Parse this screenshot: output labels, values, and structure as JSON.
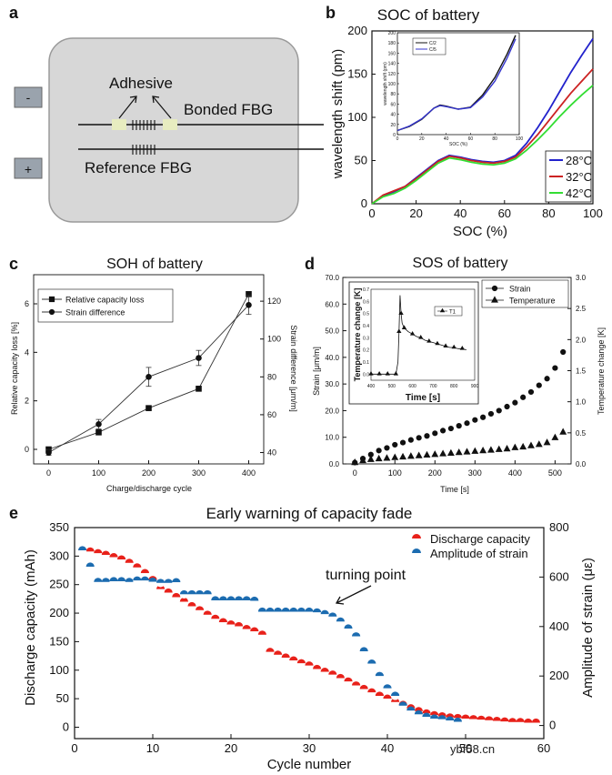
{
  "watermark": "ybf58.cn",
  "panel_a": {
    "letter": "a",
    "minus": "-",
    "plus": "+",
    "adhesive": "Adhesive",
    "bonded": "Bonded FBG",
    "reference": "Reference FBG"
  },
  "chart_data": [
    {
      "panel": "b",
      "type": "line",
      "title": "SOC of battery",
      "xlabel": "SOC (%)",
      "ylabel": "wavelength shift (pm)",
      "xlim": [
        0,
        100
      ],
      "ylim": [
        0,
        200
      ],
      "xticks": [
        "0",
        "20",
        "40",
        "60",
        "80",
        "100"
      ],
      "yticks": [
        "0",
        "50",
        "100",
        "150",
        "200"
      ],
      "legend_position": "bottom-right",
      "series": [
        {
          "name": "28°C",
          "color": "#2222cc",
          "x": [
            0,
            5,
            10,
            15,
            20,
            25,
            30,
            35,
            40,
            45,
            50,
            55,
            60,
            65,
            70,
            75,
            80,
            85,
            90,
            95,
            100
          ],
          "y": [
            0,
            9,
            14,
            20,
            30,
            40,
            50,
            56,
            54,
            51,
            49,
            48,
            50,
            56,
            70,
            88,
            108,
            130,
            152,
            172,
            191
          ]
        },
        {
          "name": "32°C",
          "color": "#cc2222",
          "x": [
            0,
            5,
            10,
            15,
            20,
            25,
            30,
            35,
            40,
            45,
            50,
            55,
            60,
            65,
            70,
            75,
            80,
            85,
            90,
            95,
            100
          ],
          "y": [
            0,
            10,
            15,
            20,
            29,
            39,
            49,
            55,
            53,
            50,
            48,
            47,
            49,
            54,
            66,
            80,
            96,
            112,
            128,
            142,
            156
          ]
        },
        {
          "name": "42°C",
          "color": "#33dd33",
          "x": [
            0,
            5,
            10,
            15,
            20,
            25,
            30,
            35,
            40,
            45,
            50,
            55,
            60,
            65,
            70,
            75,
            80,
            85,
            90,
            95,
            100
          ],
          "y": [
            0,
            8,
            12,
            18,
            27,
            37,
            47,
            53,
            51,
            48,
            46,
            45,
            47,
            52,
            62,
            74,
            87,
            101,
            114,
            126,
            137
          ]
        }
      ],
      "inset": {
        "xlabel": "SOC (%)",
        "ylabel": "wavelength shift (pm)",
        "xlim": [
          0,
          100
        ],
        "ylim": [
          0,
          200
        ],
        "xticks": [
          "0",
          "20",
          "40",
          "60",
          "80",
          "100"
        ],
        "yticks": [
          "0",
          "20",
          "40",
          "60",
          "80",
          "100",
          "120",
          "140",
          "160",
          "180",
          "200"
        ],
        "series": [
          {
            "name": "C/2",
            "color": "#111111",
            "x": [
              0,
              10,
              20,
              30,
              35,
              40,
              50,
              60,
              70,
              80,
              90,
              97
            ],
            "y": [
              8,
              16,
              30,
              52,
              58,
              56,
              50,
              54,
              78,
              112,
              158,
              195
            ]
          },
          {
            "name": "C/5",
            "color": "#3333cc",
            "x": [
              0,
              10,
              20,
              30,
              35,
              40,
              50,
              60,
              70,
              80,
              90,
              97
            ],
            "y": [
              8,
              17,
              31,
              52,
              57,
              55,
              50,
              53,
              74,
              105,
              150,
              188
            ]
          }
        ]
      }
    },
    {
      "panel": "c",
      "type": "line",
      "title": "SOH of battery",
      "xlabel": "Charge/discharge cycle",
      "ylabel": "Relative capacity loss [%]",
      "ylabel_right": "Strain difference [μm/m]",
      "xlim": [
        -30,
        430
      ],
      "ylim": [
        -0.6,
        7.2
      ],
      "ylim_right": [
        34,
        134
      ],
      "xticks": [
        "0",
        "100",
        "200",
        "300",
        "400"
      ],
      "yticks": [
        "0",
        "2",
        "4",
        "6"
      ],
      "yticks_right": [
        "40",
        "60",
        "80",
        "100",
        "120"
      ],
      "legend_position": "top-left",
      "series": [
        {
          "name": "Relative capacity loss",
          "marker": "square",
          "axis": "left",
          "x": [
            0,
            100,
            200,
            300,
            400
          ],
          "y": [
            0,
            0.7,
            1.7,
            2.5,
            6.4
          ]
        },
        {
          "name": "Strain difference",
          "marker": "circle",
          "axis": "right",
          "x": [
            0,
            100,
            200,
            300,
            400
          ],
          "y": [
            40,
            55,
            80,
            90,
            118
          ],
          "err": [
            1.5,
            2.5,
            5,
            4,
            5
          ]
        }
      ]
    },
    {
      "panel": "d",
      "type": "scatter",
      "title": "SOS of battery",
      "xlabel": "Time [s]",
      "ylabel": "Strain [μm/m]",
      "ylabel_right": "Temperature change [K]",
      "xlim": [
        -30,
        540
      ],
      "ylim": [
        0,
        70
      ],
      "ylim_right": [
        0,
        3
      ],
      "xticks": [
        "0",
        "100",
        "200",
        "300",
        "400",
        "500"
      ],
      "yticks": [
        "0.0",
        "10.0",
        "20.0",
        "30.0",
        "40.0",
        "50.0",
        "60.0",
        "70.0"
      ],
      "yticks_right": [
        "0.0",
        "0.5",
        "1.0",
        "1.5",
        "2.0",
        "2.5",
        "3.0"
      ],
      "legend_position": "top-right",
      "series": [
        {
          "name": "Strain",
          "marker": "circle",
          "axis": "left",
          "x": [
            0,
            20,
            40,
            60,
            80,
            100,
            120,
            140,
            160,
            180,
            200,
            220,
            240,
            260,
            280,
            300,
            320,
            340,
            360,
            380,
            400,
            420,
            440,
            460,
            480,
            500,
            520
          ],
          "y": [
            0.5,
            2,
            3.5,
            5,
            6,
            7.2,
            8,
            9,
            9.8,
            10.5,
            11.5,
            12.5,
            13.3,
            14.3,
            15.3,
            16.5,
            17.5,
            18.8,
            20,
            21.5,
            23,
            25,
            27,
            29.5,
            32,
            36,
            42
          ]
        },
        {
          "name": "Temperature",
          "marker": "triangle",
          "axis": "right",
          "x": [
            0,
            20,
            40,
            60,
            80,
            100,
            120,
            140,
            160,
            180,
            200,
            220,
            240,
            260,
            280,
            300,
            320,
            340,
            360,
            380,
            400,
            420,
            440,
            460,
            480,
            500,
            520
          ],
          "y": [
            0.02,
            0.05,
            0.07,
            0.08,
            0.09,
            0.1,
            0.11,
            0.12,
            0.13,
            0.14,
            0.15,
            0.16,
            0.17,
            0.18,
            0.19,
            0.2,
            0.21,
            0.22,
            0.23,
            0.24,
            0.26,
            0.27,
            0.29,
            0.31,
            0.34,
            0.42,
            0.51
          ]
        }
      ],
      "inset": {
        "xlabel": "Time [s]",
        "ylabel": "Temperature change [K]",
        "xlim": [
          400,
          900
        ],
        "ylim": [
          -0.05,
          0.7
        ],
        "xticks": [
          "400",
          "500",
          "600",
          "700",
          "800",
          "900"
        ],
        "yticks": [
          "0.0",
          "0.1",
          "0.2",
          "0.3",
          "0.4",
          "0.5",
          "0.6",
          "0.7"
        ],
        "legend": "T1",
        "series": [
          {
            "name": "T1",
            "x": [
              400,
              420,
              440,
              460,
              480,
              500,
              520,
              530,
              535,
              540,
              545,
              550,
              560,
              580,
              600,
              620,
              640,
              660,
              680,
              700,
              720,
              740,
              760,
              780,
              800,
              820,
              840,
              860
            ],
            "y": [
              0,
              0,
              0,
              0,
              0,
              0,
              0,
              0.1,
              0.35,
              0.65,
              0.5,
              0.42,
              0.38,
              0.35,
              0.33,
              0.31,
              0.3,
              0.28,
              0.27,
              0.26,
              0.25,
              0.24,
              0.23,
              0.22,
              0.22,
              0.21,
              0.21,
              0.2
            ]
          }
        ]
      }
    },
    {
      "panel": "e",
      "type": "scatter",
      "title": "Early warning of capacity fade",
      "xlabel": "Cycle number",
      "ylabel": "Discharge capacity (mAh)",
      "ylabel_right": "Amplitude of strain (με)",
      "xlim": [
        0,
        60
      ],
      "ylim": [
        -20,
        350
      ],
      "ylim_right": [
        -53,
        800
      ],
      "xticks": [
        "0",
        "10",
        "20",
        "30",
        "40",
        "50",
        "60"
      ],
      "yticks": [
        "0",
        "50",
        "100",
        "150",
        "200",
        "250",
        "300",
        "350"
      ],
      "yticks_right": [
        "0",
        "200",
        "400",
        "600",
        "800"
      ],
      "legend_position": "top-right",
      "annotation": "turning point",
      "series": [
        {
          "name": "Discharge capacity",
          "color": "#e8211a",
          "axis": "left",
          "x": [
            1,
            2,
            3,
            4,
            5,
            6,
            7,
            8,
            9,
            10,
            11,
            12,
            13,
            14,
            15,
            16,
            17,
            18,
            19,
            20,
            21,
            22,
            23,
            24,
            25,
            26,
            27,
            28,
            29,
            30,
            31,
            32,
            33,
            34,
            35,
            36,
            37,
            38,
            39,
            40,
            41,
            42,
            43,
            44,
            45,
            46,
            47,
            48,
            49,
            50,
            51,
            52,
            53,
            54,
            55,
            56,
            57,
            58,
            59
          ],
          "y": [
            309,
            308,
            305,
            302,
            298,
            294,
            288,
            280,
            270,
            258,
            242,
            236,
            228,
            220,
            212,
            205,
            197,
            190,
            184,
            180,
            177,
            172,
            168,
            162,
            132,
            127,
            122,
            117,
            112,
            108,
            102,
            97,
            92,
            86,
            80,
            73,
            67,
            61,
            55,
            50,
            44,
            39,
            33,
            28,
            24,
            21,
            19,
            17,
            16,
            15,
            14,
            13,
            12,
            11,
            10,
            9,
            9,
            8,
            8
          ]
        },
        {
          "name": "Amplitude of strain",
          "color": "#1c6cb0",
          "axis": "right",
          "x": [
            1,
            2,
            3,
            4,
            5,
            6,
            7,
            8,
            9,
            10,
            11,
            12,
            13,
            14,
            15,
            16,
            17,
            18,
            19,
            20,
            21,
            22,
            23,
            24,
            25,
            26,
            27,
            28,
            29,
            30,
            31,
            32,
            33,
            34,
            35,
            36,
            37,
            38,
            39,
            40,
            41,
            42,
            43,
            44,
            45,
            46,
            47,
            48,
            49
          ],
          "y": [
            708,
            642,
            580,
            580,
            583,
            583,
            580,
            586,
            586,
            581,
            576,
            576,
            579,
            530,
            530,
            530,
            530,
            506,
            506,
            506,
            506,
            506,
            504,
            460,
            460,
            460,
            460,
            460,
            460,
            460,
            457,
            450,
            440,
            420,
            392,
            360,
            300,
            250,
            200,
            150,
            120,
            80,
            60,
            45,
            35,
            28,
            25,
            20,
            15
          ]
        }
      ]
    }
  ],
  "panel_letters": {
    "b": "b",
    "c": "c",
    "d": "d",
    "e": "e"
  }
}
